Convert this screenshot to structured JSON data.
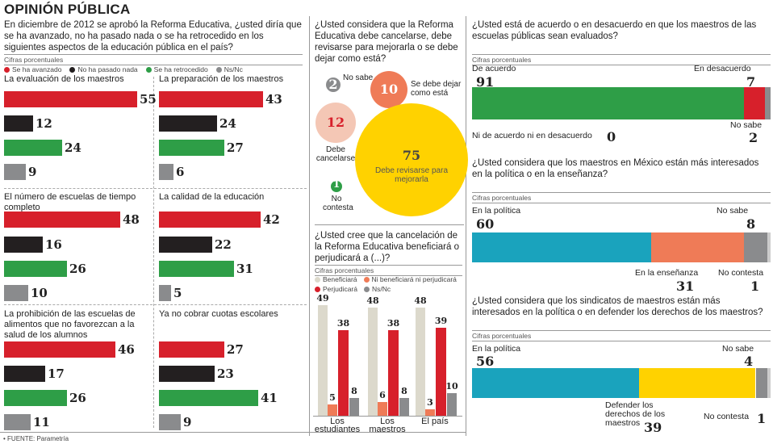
{
  "title": "OPINIÓN PÚBLICA",
  "footer": "• FUENTE: Parametría",
  "colors": {
    "red": "#d7202b",
    "black": "#231f20",
    "green": "#2e9e47",
    "gray": "#8a8b8d",
    "salmon": "#ef7b57",
    "beige": "#dcd9cc",
    "yellow": "#ffd200",
    "teal": "#1aa3bd",
    "peach": "#f4c7b5"
  },
  "chart_data": [
    {
      "type": "bar",
      "title": "En diciembre de 2012 se aprobó la Reforma Educativa, ¿usted diría que se ha avanzado, no ha pasado nada o se ha retrocedido en los siguientes aspectos de la educación pública en el país?",
      "unit": "Cifras porcentuales",
      "legend": [
        "Se ha avanzado",
        "No ha pasado nada",
        "Se ha retrocedido",
        "Ns/Nc"
      ],
      "panels": [
        {
          "name": "La evaluación de los maestros",
          "values": [
            55,
            12,
            24,
            9
          ]
        },
        {
          "name": "La preparación de los maestros",
          "values": [
            43,
            24,
            27,
            6
          ]
        },
        {
          "name": "El número de escuelas de tiempo completo",
          "values": [
            48,
            16,
            26,
            10
          ]
        },
        {
          "name": "La calidad de la educación",
          "values": [
            42,
            22,
            31,
            5
          ]
        },
        {
          "name": "La prohibición de las escuelas de alimentos que no favorezcan a la salud de los alumnos",
          "values": [
            46,
            17,
            26,
            11
          ]
        },
        {
          "name": "Ya no cobrar cuotas escolares",
          "values": [
            27,
            23,
            41,
            9
          ]
        }
      ]
    },
    {
      "type": "bubble",
      "title": "¿Usted considera que la Reforma Educativa debe cancelarse, debe revisarse para mejorarla o se debe dejar como está?",
      "items": [
        {
          "label": "No sabe",
          "value": 2
        },
        {
          "label": "Se debe dejar como está",
          "value": 10
        },
        {
          "label": "Debe cancelarse",
          "value": 12
        },
        {
          "label": "Debe revisarse para mejorarla",
          "value": 75
        },
        {
          "label": "No contesta",
          "value": 1
        }
      ]
    },
    {
      "type": "bar",
      "title": "¿Usted cree que la cancelación de la Reforma Educativa beneficiará o perjudicará a (...)?",
      "unit": "Cifras porcentuales",
      "legend": [
        "Beneficiará",
        "Ni beneficiará ni perjudicará",
        "Perjudicará",
        "Ns/Nc"
      ],
      "categories": [
        "Los estudiantes",
        "Los maestros",
        "El país"
      ],
      "series": [
        {
          "name": "Beneficiará",
          "values": [
            49,
            48,
            48
          ]
        },
        {
          "name": "Ni beneficiará ni perjudicará",
          "values": [
            5,
            6,
            3
          ]
        },
        {
          "name": "Perjudicará",
          "values": [
            38,
            38,
            39
          ]
        },
        {
          "name": "Ns/Nc",
          "values": [
            8,
            8,
            10
          ]
        }
      ]
    },
    {
      "type": "stacked-bar",
      "title": "¿Usted está de acuerdo o en desacuerdo en que los maestros de las escuelas públicas sean evaluados?",
      "unit": "Cifras porcentuales",
      "segments": [
        {
          "label": "De acuerdo",
          "value": 91
        },
        {
          "label": "En desacuerdo",
          "value": 7
        },
        {
          "label": "No sabe",
          "value": 2
        },
        {
          "label": "Ni de acuerdo ni en desacuerdo",
          "value": 0
        }
      ]
    },
    {
      "type": "stacked-bar",
      "title": "¿Usted considera que los maestros en México están más interesados en la política o en la enseñanza?",
      "unit": "Cifras porcentuales",
      "segments": [
        {
          "label": "En la política",
          "value": 60
        },
        {
          "label": "En la enseñanza",
          "value": 31
        },
        {
          "label": "No sabe",
          "value": 8
        },
        {
          "label": "No contesta",
          "value": 1
        }
      ]
    },
    {
      "type": "stacked-bar",
      "title": "¿Usted considera que los sindicatos de maestros están más interesados en la política o en defender los derechos de los maestros?",
      "unit": "Cifras porcentuales",
      "segments": [
        {
          "label": "En la política",
          "value": 56
        },
        {
          "label": "Defender los derechos de los maestros",
          "value": 39
        },
        {
          "label": "No sabe",
          "value": 4
        },
        {
          "label": "No contesta",
          "value": 1
        }
      ]
    }
  ]
}
